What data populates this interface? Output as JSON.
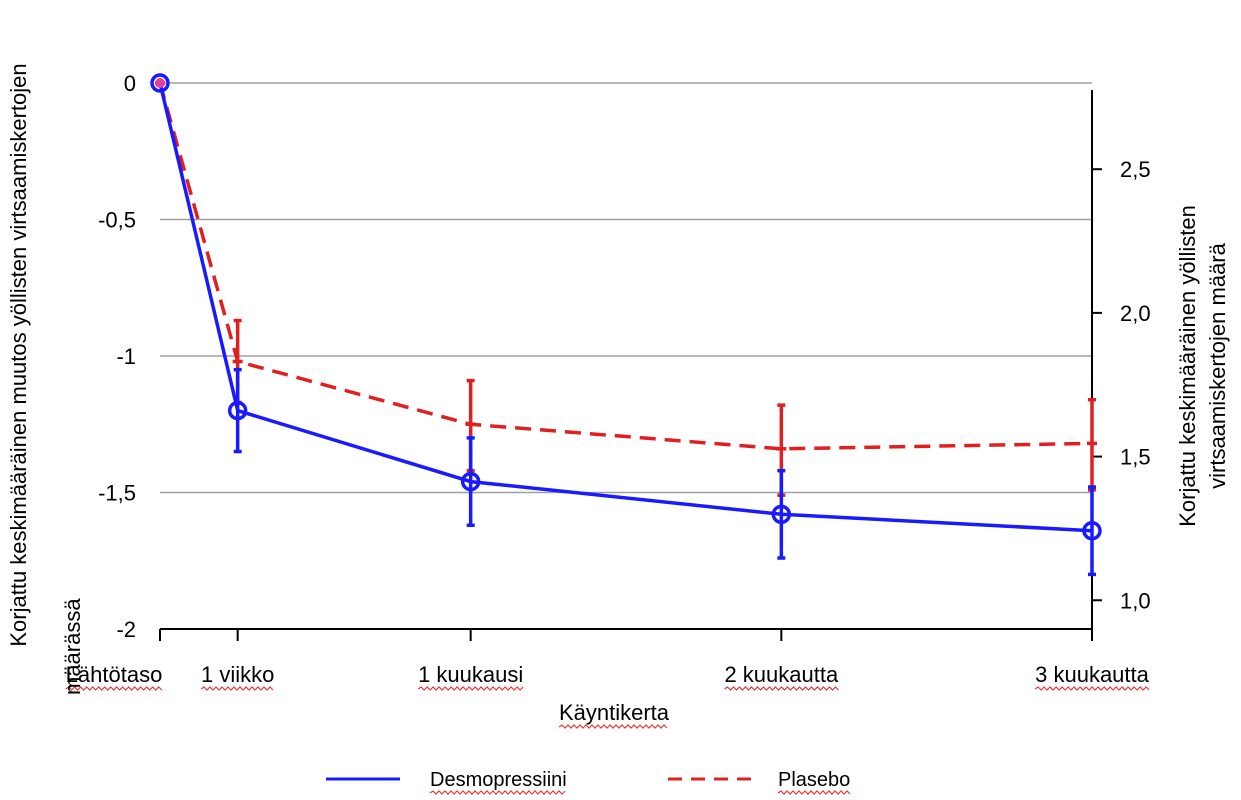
{
  "chart_data": {
    "type": "line",
    "categories": [
      "Lähtötaso",
      "1 viikko",
      "1 kuukausi",
      "2 kuukautta",
      "3 kuukautta"
    ],
    "x": [
      0,
      1,
      4,
      8,
      12
    ],
    "xlabel": "Käyntikerta",
    "ylabel_left_lines": [
      "Korjattu keskimääräinen muutos yöllisten virtsaamiskertojen",
      "määrässä"
    ],
    "ylabel_right_lines": [
      "Korjattu keskimääräinen yöllisten",
      "virtsaamiskertojen määrä"
    ],
    "ylim_left": [
      -2,
      0
    ],
    "yticks_left": [
      0,
      -0.5,
      -1,
      -1.5,
      -2
    ],
    "ytick_labels_left": [
      "0",
      "-0,5",
      "-1",
      "-1,5",
      "-2"
    ],
    "ylim_right_at_left_extremes": [
      2.8,
      0.9
    ],
    "yticks_right": [
      2.5,
      2.0,
      1.5,
      1.0
    ],
    "ytick_labels_right": [
      "2,5",
      "2,0",
      "1,5",
      "1,0"
    ],
    "grid": "horizontal",
    "legend_position": "bottom",
    "series": [
      {
        "name": "Desmopressiini",
        "color": "#1a1aff",
        "style": "solid",
        "marker": "circle",
        "values": [
          0,
          -1.2,
          -1.46,
          -1.58,
          -1.64
        ],
        "err_low": [
          0,
          -1.35,
          -1.62,
          -1.74,
          -1.8
        ],
        "err_high": [
          0,
          -1.05,
          -1.3,
          -1.42,
          -1.48
        ]
      },
      {
        "name": "Plasebo",
        "color": "#e02020",
        "style": "dashed",
        "marker": "tick",
        "values": [
          0,
          -1.02,
          -1.25,
          -1.34,
          -1.32
        ],
        "err_low": [
          0,
          -1.17,
          -1.42,
          -1.51,
          -1.49
        ],
        "err_high": [
          0,
          -0.87,
          -1.09,
          -1.18,
          -1.16
        ]
      }
    ]
  }
}
